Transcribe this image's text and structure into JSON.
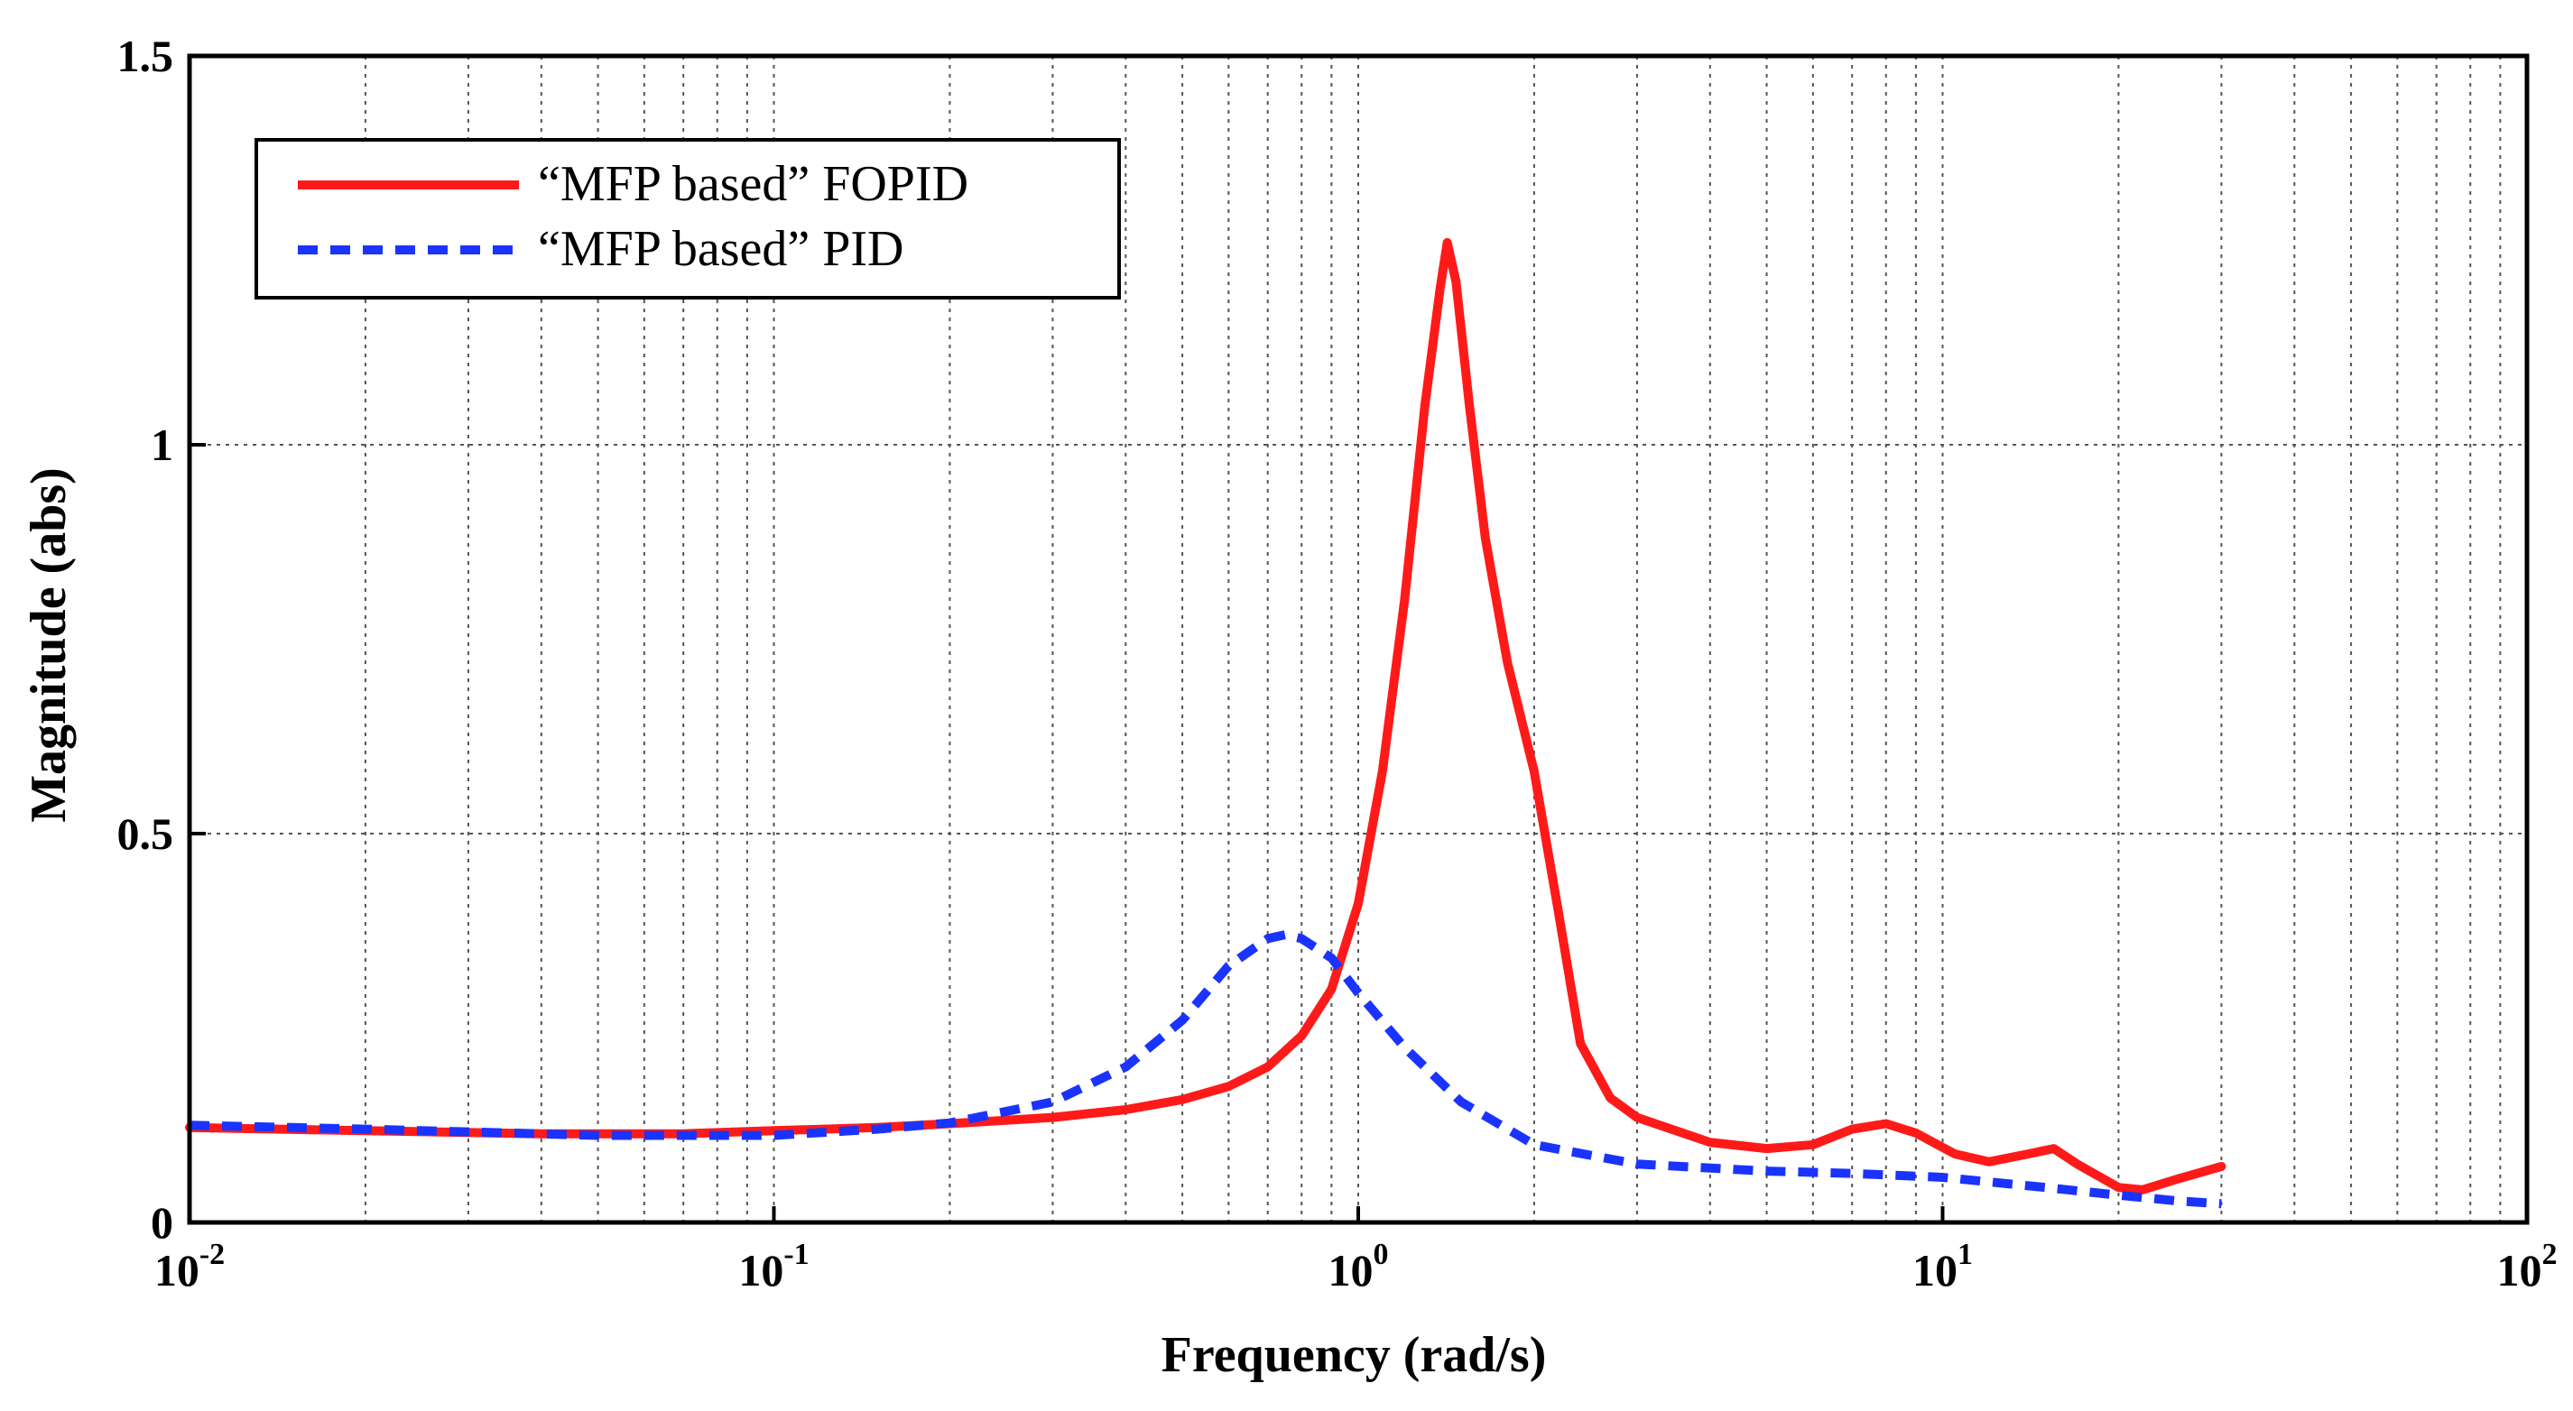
{
  "chart_data": {
    "type": "line",
    "title": "",
    "xlabel": "Frequency (rad/s)",
    "ylabel": "Magnitude (abs)",
    "xscale": "log",
    "xlim": [
      0.01,
      100
    ],
    "ylim": [
      0,
      1.5
    ],
    "grid": true,
    "legend_position": "top-left",
    "x_ticks": [
      {
        "value": 0.01,
        "base": "10",
        "exp": "-2"
      },
      {
        "value": 0.1,
        "base": "10",
        "exp": "-1"
      },
      {
        "value": 1,
        "base": "10",
        "exp": "0"
      },
      {
        "value": 10,
        "base": "10",
        "exp": "1"
      },
      {
        "value": 100,
        "base": "10",
        "exp": "2"
      }
    ],
    "y_ticks": [
      {
        "value": 0,
        "label": "0"
      },
      {
        "value": 0.5,
        "label": "0.5"
      },
      {
        "value": 1,
        "label": "1"
      },
      {
        "value": 1.5,
        "label": "1.5"
      }
    ],
    "series": [
      {
        "name": "“MFP based” FOPID",
        "color": "#ff1a1a",
        "style": "solid",
        "points": [
          [
            0.01,
            0.122
          ],
          [
            0.02,
            0.118
          ],
          [
            0.04,
            0.114
          ],
          [
            0.07,
            0.114
          ],
          [
            0.1,
            0.118
          ],
          [
            0.15,
            0.122
          ],
          [
            0.2,
            0.127
          ],
          [
            0.3,
            0.135
          ],
          [
            0.4,
            0.145
          ],
          [
            0.5,
            0.158
          ],
          [
            0.6,
            0.175
          ],
          [
            0.7,
            0.2
          ],
          [
            0.8,
            0.24
          ],
          [
            0.9,
            0.3
          ],
          [
            1.0,
            0.41
          ],
          [
            1.1,
            0.58
          ],
          [
            1.2,
            0.8
          ],
          [
            1.3,
            1.05
          ],
          [
            1.38,
            1.2
          ],
          [
            1.42,
            1.26
          ],
          [
            1.47,
            1.21
          ],
          [
            1.55,
            1.05
          ],
          [
            1.65,
            0.88
          ],
          [
            1.8,
            0.72
          ],
          [
            2.0,
            0.58
          ],
          [
            2.2,
            0.4
          ],
          [
            2.4,
            0.23
          ],
          [
            2.7,
            0.16
          ],
          [
            3.0,
            0.135
          ],
          [
            4.0,
            0.103
          ],
          [
            5.0,
            0.095
          ],
          [
            6.0,
            0.1
          ],
          [
            7.0,
            0.12
          ],
          [
            8.0,
            0.127
          ],
          [
            9.0,
            0.115
          ],
          [
            10.5,
            0.088
          ],
          [
            12.0,
            0.078
          ],
          [
            14.0,
            0.088
          ],
          [
            15.5,
            0.095
          ],
          [
            17.0,
            0.075
          ],
          [
            20.0,
            0.045
          ],
          [
            22.0,
            0.042
          ],
          [
            25.0,
            0.055
          ],
          [
            30.0,
            0.072
          ]
        ]
      },
      {
        "name": "“MFP based” PID",
        "color": "#1a33ff",
        "style": "dashed",
        "points": [
          [
            0.01,
            0.125
          ],
          [
            0.02,
            0.12
          ],
          [
            0.05,
            0.112
          ],
          [
            0.1,
            0.112
          ],
          [
            0.15,
            0.12
          ],
          [
            0.2,
            0.128
          ],
          [
            0.3,
            0.155
          ],
          [
            0.4,
            0.2
          ],
          [
            0.5,
            0.26
          ],
          [
            0.6,
            0.33
          ],
          [
            0.7,
            0.365
          ],
          [
            0.75,
            0.37
          ],
          [
            0.8,
            0.365
          ],
          [
            0.9,
            0.34
          ],
          [
            1.0,
            0.295
          ],
          [
            1.2,
            0.225
          ],
          [
            1.5,
            0.155
          ],
          [
            2.0,
            0.1
          ],
          [
            3.0,
            0.075
          ],
          [
            5.0,
            0.066
          ],
          [
            7.0,
            0.063
          ],
          [
            10.0,
            0.058
          ],
          [
            15.0,
            0.045
          ],
          [
            20.0,
            0.035
          ],
          [
            25.0,
            0.028
          ],
          [
            30.0,
            0.024
          ]
        ]
      }
    ]
  }
}
